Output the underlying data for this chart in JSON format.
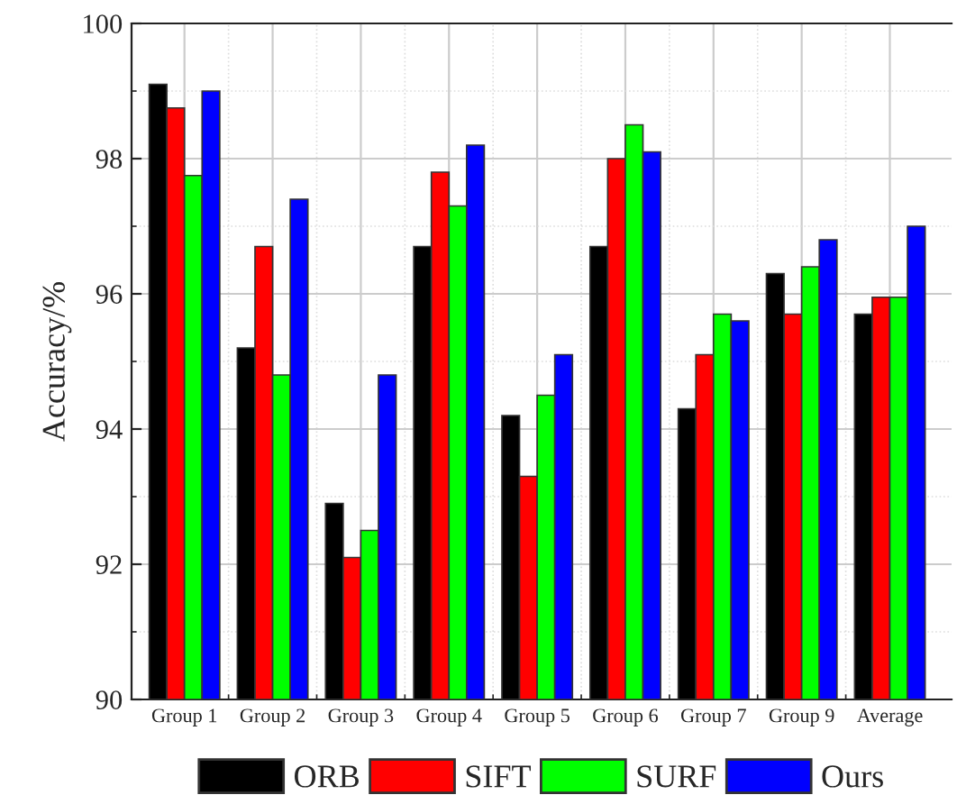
{
  "chart_data": {
    "type": "bar",
    "ylabel": "Accuracy/%",
    "categories": [
      "Group 1",
      "Group 2",
      "Group 3",
      "Group 4",
      "Group 5",
      "Group 6",
      "Group 7",
      "Group 9",
      "Average"
    ],
    "series": [
      {
        "name": "ORB",
        "color": "#000000",
        "values": [
          99.1,
          95.2,
          92.9,
          96.7,
          94.2,
          96.7,
          94.3,
          96.3,
          95.7
        ]
      },
      {
        "name": "SIFT",
        "color": "#ff0000",
        "values": [
          98.75,
          96.7,
          92.1,
          97.8,
          93.3,
          98.0,
          95.1,
          95.7,
          95.95
        ]
      },
      {
        "name": "SURF",
        "color": "#00ff00",
        "values": [
          97.75,
          94.8,
          92.5,
          97.3,
          94.5,
          98.5,
          95.7,
          96.4,
          95.95
        ]
      },
      {
        "name": "Ours",
        "color": "#0000ff",
        "values": [
          99.0,
          97.4,
          94.8,
          98.2,
          95.1,
          98.1,
          95.6,
          96.8,
          97.0
        ]
      }
    ],
    "ylim": [
      90,
      100
    ],
    "yticks": [
      90,
      92,
      94,
      96,
      98,
      100
    ],
    "grid": true,
    "legend": "bottom"
  }
}
